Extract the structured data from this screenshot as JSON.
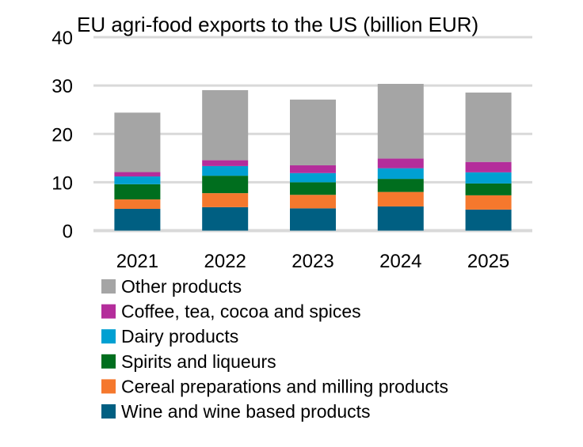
{
  "chart_data": {
    "type": "bar",
    "stacked": true,
    "title": "EU agri-food exports to the US (billion EUR)",
    "xlabel": "",
    "ylabel": "",
    "ylim": [
      0,
      40
    ],
    "yticks": [
      0,
      10,
      20,
      30,
      40
    ],
    "grid": true,
    "legend_position": "bottom",
    "categories": [
      "2021",
      "2022",
      "2023",
      "2024",
      "2025"
    ],
    "series": [
      {
        "name": "Wine and wine based products",
        "color": "#005F82",
        "values": [
          4.5,
          4.85,
          4.6,
          5.0,
          4.35
        ]
      },
      {
        "name": "Cereal preparations and milling products",
        "color": "#F5782D",
        "values": [
          1.95,
          2.9,
          2.8,
          3.0,
          2.95
        ]
      },
      {
        "name": "Spirits and liqueurs",
        "color": "#006E1E",
        "values": [
          3.15,
          3.6,
          2.6,
          2.7,
          2.45
        ]
      },
      {
        "name": "Dairy products",
        "color": "#00A0D2",
        "values": [
          1.6,
          2.0,
          1.9,
          2.2,
          2.3
        ]
      },
      {
        "name": "Coffee, tea, cocoa and spices",
        "color": "#B42D9B",
        "values": [
          0.9,
          1.2,
          1.6,
          2.0,
          2.15
        ]
      },
      {
        "name": "Other products",
        "color": "#A5A5A5",
        "values": [
          12.3,
          14.5,
          13.6,
          15.45,
          14.35
        ]
      }
    ]
  }
}
